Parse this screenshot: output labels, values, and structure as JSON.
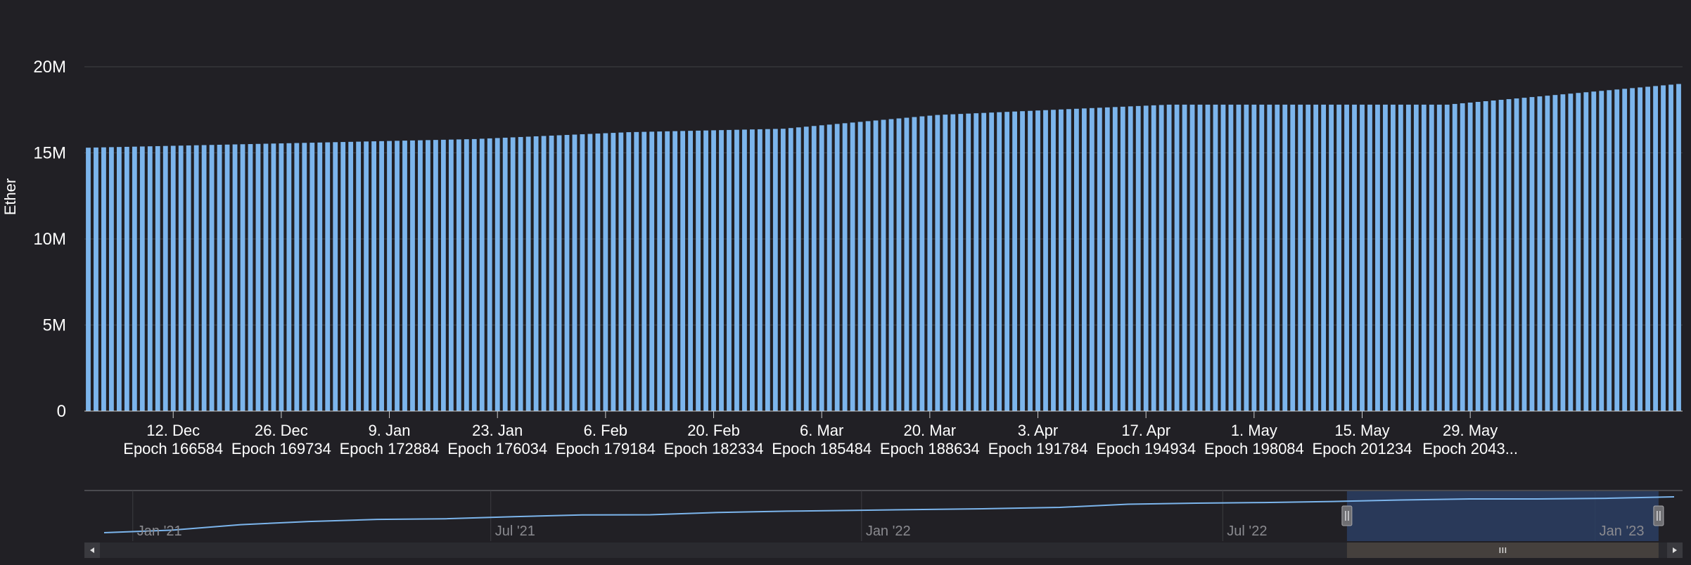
{
  "chart_data": {
    "type": "bar",
    "ylabel": "Ether",
    "xlabel": "",
    "title": "",
    "ylim": [
      0,
      20000000
    ],
    "ytick_values": [
      0,
      5000000,
      10000000,
      15000000,
      20000000
    ],
    "ytick_labels": [
      "0",
      "5M",
      "10M",
      "15M",
      "20M"
    ],
    "grid": true,
    "bar_color": "#7cb5ec",
    "bar_count": 207,
    "values": [
      15.3,
      15.31,
      15.32,
      15.33,
      15.34,
      15.35,
      15.36,
      15.37,
      15.38,
      15.39,
      15.4,
      15.41,
      15.42,
      15.43,
      15.44,
      15.45,
      15.46,
      15.47,
      15.48,
      15.49,
      15.5,
      15.51,
      15.52,
      15.53,
      15.54,
      15.55,
      15.56,
      15.57,
      15.58,
      15.59,
      15.6,
      15.61,
      15.62,
      15.63,
      15.64,
      15.65,
      15.66,
      15.67,
      15.68,
      15.69,
      15.7,
      15.71,
      15.72,
      15.73,
      15.74,
      15.75,
      15.76,
      15.77,
      15.78,
      15.79,
      15.8,
      15.82,
      15.84,
      15.86,
      15.88,
      15.9,
      15.92,
      15.94,
      15.96,
      15.98,
      16.0,
      16.02,
      16.04,
      16.06,
      16.08,
      16.1,
      16.12,
      16.14,
      16.16,
      16.18,
      16.2,
      16.21,
      16.22,
      16.23,
      16.24,
      16.25,
      16.26,
      16.27,
      16.28,
      16.29,
      16.3,
      16.31,
      16.32,
      16.33,
      16.34,
      16.35,
      16.36,
      16.37,
      16.38,
      16.39,
      16.4,
      16.44,
      16.48,
      16.52,
      16.56,
      16.6,
      16.64,
      16.68,
      16.72,
      16.76,
      16.8,
      16.84,
      16.88,
      16.92,
      16.96,
      17.0,
      17.04,
      17.08,
      17.12,
      17.16,
      17.2,
      17.22,
      17.24,
      17.26,
      17.28,
      17.3,
      17.32,
      17.34,
      17.36,
      17.38,
      17.4,
      17.42,
      17.44,
      17.46,
      17.48,
      17.5,
      17.52,
      17.54,
      17.56,
      17.58,
      17.6,
      17.62,
      17.64,
      17.66,
      17.68,
      17.7,
      17.72,
      17.74,
      17.76,
      17.78,
      17.8,
      17.8,
      17.8,
      17.8,
      17.8,
      17.8,
      17.8,
      17.8,
      17.8,
      17.8,
      17.8,
      17.8,
      17.8,
      17.8,
      17.8,
      17.8,
      17.8,
      17.8,
      17.8,
      17.8,
      17.8,
      17.8,
      17.8,
      17.8,
      17.8,
      17.8,
      17.8,
      17.8,
      17.8,
      17.8,
      17.8,
      17.8,
      17.8,
      17.8,
      17.8,
      17.8,
      17.8,
      17.84,
      17.88,
      17.92,
      17.96,
      18.0,
      18.04,
      18.08,
      18.12,
      18.16,
      18.2,
      18.24,
      18.28,
      18.32,
      18.36,
      18.4,
      18.44,
      18.48,
      18.52,
      18.56,
      18.6,
      18.64,
      18.68,
      18.72,
      18.76,
      18.8,
      18.84,
      18.88,
      18.92,
      18.96,
      19.0
    ],
    "value_unit_multiplier": 1000000,
    "x_ticks": [
      {
        "date": "12. Dec",
        "epoch": "Epoch 166584",
        "bar_index": 11
      },
      {
        "date": "26. Dec",
        "epoch": "Epoch 169734",
        "bar_index": 25
      },
      {
        "date": "9. Jan",
        "epoch": "Epoch 172884",
        "bar_index": 39
      },
      {
        "date": "23. Jan",
        "epoch": "Epoch 176034",
        "bar_index": 53
      },
      {
        "date": "6. Feb",
        "epoch": "Epoch 179184",
        "bar_index": 67
      },
      {
        "date": "20. Feb",
        "epoch": "Epoch 182334",
        "bar_index": 81
      },
      {
        "date": "6. Mar",
        "epoch": "Epoch 185484",
        "bar_index": 95
      },
      {
        "date": "20. Mar",
        "epoch": "Epoch 188634",
        "bar_index": 109
      },
      {
        "date": "3. Apr",
        "epoch": "Epoch 191784",
        "bar_index": 123
      },
      {
        "date": "17. Apr",
        "epoch": "Epoch 194934",
        "bar_index": 137
      },
      {
        "date": "1. May",
        "epoch": "Epoch 198084",
        "bar_index": 151
      },
      {
        "date": "15. May",
        "epoch": "Epoch 201234",
        "bar_index": 165
      },
      {
        "date": "29. May",
        "epoch": "Epoch 2043...",
        "bar_index": 179
      }
    ]
  },
  "navigator": {
    "labels": [
      "Jan '21",
      "Jul '21",
      "Jan '22",
      "Jul '22",
      "Jan '23"
    ],
    "series": [
      3.0,
      4.2,
      6.8,
      8.3,
      9.3,
      9.6,
      10.6,
      11.4,
      11.5,
      12.6,
      13.2,
      13.6,
      14.0,
      14.4,
      15.0,
      16.5,
      17.0,
      17.3,
      17.8,
      18.5,
      19.0,
      19.0,
      19.3,
      20.0
    ],
    "series_ylim": [
      0,
      20
    ],
    "selection_fraction": [
      0.79,
      0.985
    ],
    "colors": {
      "selection_fill": "#2a3e63",
      "line": "#7cb5ec",
      "scrollbar": "#45403d"
    }
  },
  "scrollbar": {
    "left_arrow_icon": "arrow-left-icon",
    "right_arrow_icon": "arrow-right-icon",
    "grip_icon": "grip-icon"
  }
}
